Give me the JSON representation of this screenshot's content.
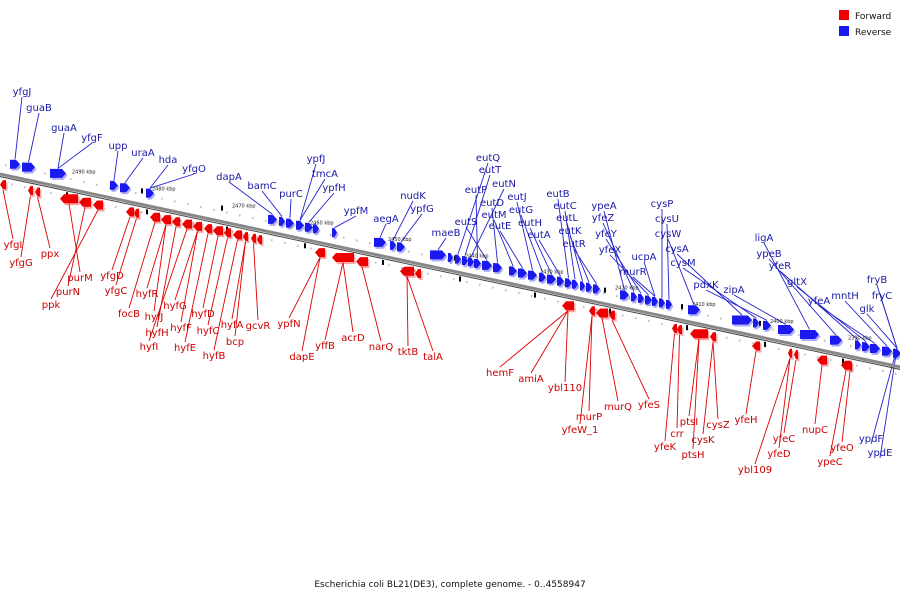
{
  "legend": {
    "items": [
      {
        "label": "Forward",
        "color": "#ee0000"
      },
      {
        "label": "Reverse",
        "color": "#1a1aee"
      }
    ]
  },
  "caption": "Escherichia coli BL21(DE3), complete genome. - 0..4558947",
  "colors": {
    "forward": "#ee0000",
    "reverse": "#1a1aee",
    "backbone": "#888888"
  },
  "ticks": [
    "2490 kbp",
    "2480 kbp",
    "2470 kbp",
    "2460 kbp",
    "2450 kbp",
    "2440 kbp",
    "2430 kbp",
    "2420 kbp",
    "2410 kbp",
    "2400 kbp",
    "2390 kbp"
  ],
  "reverse_genes": [
    "yfgJ",
    "guaB",
    "guaA",
    "yfgF",
    "upp",
    "uraA",
    "hda",
    "yfgO",
    "dapA",
    "bamC",
    "purC",
    "ypfJ",
    "tmcA",
    "ypfH",
    "ypfM",
    "aegA",
    "nudK",
    "ypfG",
    "maeB",
    "eutQ",
    "eutT",
    "eutN",
    "eutP",
    "eutS",
    "eutD",
    "eutM",
    "eutE",
    "eutJ",
    "eutG",
    "eutH",
    "eutA",
    "eutB",
    "eutC",
    "eutL",
    "eutK",
    "eutR",
    "ypeA",
    "yfeZ",
    "yfeY",
    "yfeX",
    "ucpA",
    "murR",
    "cysP",
    "cysU",
    "cysW",
    "cysA",
    "cysM",
    "pdxK",
    "zipA",
    "ligA",
    "ypeB",
    "yfeR",
    "gltX",
    "yfeA",
    "mntH",
    "fryB",
    "fryC",
    "glk",
    "ypdF",
    "ypdE"
  ],
  "forward_genes": [
    "yfgI",
    "yfgG",
    "ppx",
    "purM",
    "purN",
    "ppk",
    "yfgD",
    "yfgC",
    "focB",
    "hyfR",
    "hyfJ",
    "hyfH",
    "hyfI",
    "hyfG",
    "hyfF",
    "hyfE",
    "hyfD",
    "hyfC",
    "hyfB",
    "hyfA",
    "bcp",
    "gcvR",
    "ypfN",
    "dapE",
    "yffB",
    "acrD",
    "narQ",
    "tktB",
    "talA",
    "hemF",
    "amiA",
    "ybl110",
    "murP",
    "yfeW_1",
    "murQ",
    "yfeS",
    "yfeK",
    "crr",
    "ptsI",
    "ptsH",
    "cysK",
    "cysZ",
    "yfeH",
    "ybl109",
    "yfeD",
    "yfeC",
    "nupC",
    "ypeC",
    "yfeO"
  ]
}
